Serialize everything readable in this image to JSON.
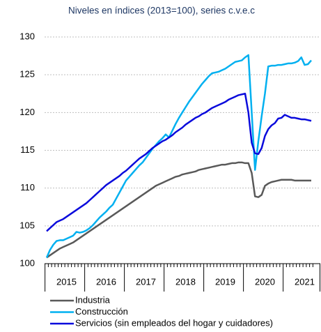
{
  "chart_data": {
    "type": "line",
    "title": "Niveles en índices (2013=100), series c.v.e.c",
    "categories": [
      null,
      null,
      null,
      null,
      null,
      null,
      "2015",
      null,
      null,
      null,
      null,
      null,
      null,
      null,
      null,
      null,
      null,
      null,
      "2016",
      null,
      null,
      null,
      null,
      null,
      null,
      null,
      null,
      null,
      null,
      null,
      "2017",
      null,
      null,
      null,
      null,
      null,
      null,
      null,
      null,
      null,
      null,
      null,
      "2018",
      null,
      null,
      null,
      null,
      null,
      null,
      null,
      null,
      null,
      null,
      null,
      "2019",
      null,
      null,
      null,
      null,
      null,
      null,
      null,
      null,
      null,
      null,
      null,
      "2020",
      null,
      null,
      null,
      null,
      null,
      null,
      null,
      null,
      null,
      null,
      null,
      "2021",
      null,
      null
    ],
    "ylim": [
      100,
      130
    ],
    "yticks": [
      100,
      105,
      110,
      115,
      120,
      125,
      130
    ],
    "grid": true,
    "series": [
      {
        "name": "Industria",
        "color": "#595959",
        "values": [
          100.8,
          101.1,
          101.4,
          101.7,
          102.0,
          102.2,
          102.4,
          102.6,
          102.8,
          103.1,
          103.4,
          103.7,
          104.0,
          104.3,
          104.6,
          104.9,
          105.2,
          105.5,
          105.8,
          106.1,
          106.4,
          106.7,
          107.0,
          107.3,
          107.6,
          107.9,
          108.2,
          108.5,
          108.8,
          109.1,
          109.4,
          109.7,
          110.0,
          110.3,
          110.5,
          110.7,
          110.9,
          111.1,
          111.3,
          111.5,
          111.6,
          111.8,
          111.9,
          112.0,
          112.1,
          112.2,
          112.4,
          112.5,
          112.6,
          112.7,
          112.8,
          112.9,
          113.0,
          113.1,
          113.1,
          113.2,
          113.3,
          113.3,
          113.4,
          113.4,
          113.3,
          113.3,
          112.0,
          108.9,
          108.8,
          109.1,
          110.3,
          110.6,
          110.8,
          110.9,
          111.0,
          111.1,
          111.1,
          111.1,
          111.1,
          111.0,
          111.0,
          111.0,
          111.0,
          111.0,
          111.0
        ]
      },
      {
        "name": "Construcción",
        "color": "#00b0f0",
        "values": [
          100.8,
          101.8,
          102.5,
          103.0,
          103.1,
          103.1,
          103.3,
          103.5,
          103.7,
          104.2,
          104.1,
          104.2,
          104.4,
          104.7,
          105.1,
          105.6,
          106.1,
          106.5,
          106.9,
          107.4,
          107.8,
          108.6,
          109.4,
          110.2,
          111.0,
          111.5,
          112.0,
          112.5,
          113.0,
          113.4,
          114.0,
          114.6,
          115.2,
          115.7,
          116.2,
          116.6,
          117.1,
          116.7,
          117.6,
          118.5,
          119.3,
          120.0,
          120.7,
          121.4,
          122.0,
          122.6,
          123.2,
          123.8,
          124.3,
          124.8,
          125.2,
          125.3,
          125.4,
          125.6,
          125.8,
          126.1,
          126.4,
          126.7,
          126.8,
          126.9,
          127.3,
          127.6,
          120.0,
          112.4,
          116.2,
          119.5,
          122.5,
          126.1,
          126.2,
          126.2,
          126.3,
          126.3,
          126.4,
          126.5,
          126.5,
          126.6,
          126.8,
          127.3,
          126.3,
          126.4,
          126.9
        ]
      },
      {
        "name": "Servicios (sin empleados del hogar y cuidadores)",
        "color": "#0a0adc",
        "values": [
          104.3,
          104.7,
          105.1,
          105.5,
          105.7,
          105.9,
          106.2,
          106.5,
          106.8,
          107.1,
          107.4,
          107.7,
          108.0,
          108.4,
          108.8,
          109.2,
          109.6,
          110.0,
          110.4,
          110.7,
          111.0,
          111.3,
          111.6,
          112.0,
          112.3,
          112.7,
          113.1,
          113.5,
          113.9,
          114.2,
          114.5,
          114.9,
          115.3,
          115.6,
          115.9,
          116.2,
          116.4,
          116.7,
          117.0,
          117.4,
          117.7,
          118.0,
          118.4,
          118.7,
          119.0,
          119.3,
          119.5,
          119.8,
          120.0,
          120.3,
          120.6,
          120.8,
          121.0,
          121.2,
          121.4,
          121.7,
          121.9,
          122.1,
          122.3,
          122.4,
          122.5,
          120.0,
          116.0,
          114.6,
          114.5,
          115.3,
          116.9,
          117.8,
          118.3,
          118.6,
          119.2,
          119.3,
          119.7,
          119.5,
          119.3,
          119.3,
          119.2,
          119.1,
          119.1,
          119.0,
          118.9
        ]
      }
    ]
  }
}
